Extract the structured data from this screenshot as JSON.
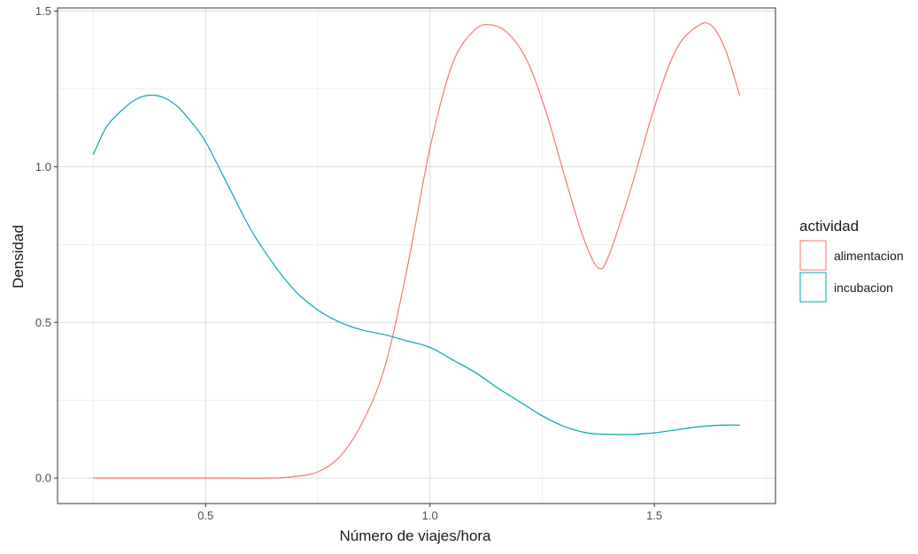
{
  "chart_data": {
    "type": "line",
    "xlabel": "Número de viajes/hora",
    "ylabel": "Densidad",
    "xlim": [
      0.17,
      1.77
    ],
    "ylim": [
      -0.082,
      1.51
    ],
    "x_ticks": [
      0.5,
      1.0,
      1.5
    ],
    "x_tick_labels": [
      "0.5",
      "1.0",
      "1.5"
    ],
    "y_ticks": [
      0.0,
      0.5,
      1.0,
      1.5
    ],
    "y_tick_labels": [
      "0.0",
      "0.5",
      "1.0",
      "1.5"
    ],
    "grid": true,
    "legend": {
      "title": "actividad",
      "position": "right"
    },
    "series": [
      {
        "name": "alimentacion",
        "color": "#f8766d",
        "x": [
          0.25,
          0.4,
          0.55,
          0.65,
          0.7,
          0.75,
          0.8,
          0.85,
          0.9,
          0.95,
          1.0,
          1.05,
          1.1,
          1.14,
          1.18,
          1.22,
          1.26,
          1.3,
          1.34,
          1.375,
          1.4,
          1.45,
          1.5,
          1.55,
          1.6,
          1.63,
          1.66,
          1.69
        ],
        "y": [
          0.0,
          0.0,
          0.0,
          0.0,
          0.005,
          0.02,
          0.07,
          0.18,
          0.36,
          0.68,
          1.06,
          1.33,
          1.44,
          1.455,
          1.42,
          1.33,
          1.17,
          0.97,
          0.78,
          0.675,
          0.72,
          0.94,
          1.19,
          1.38,
          1.455,
          1.45,
          1.37,
          1.23
        ]
      },
      {
        "name": "incubacion",
        "color": "#00a9b5",
        "x": [
          0.25,
          0.28,
          0.32,
          0.35,
          0.38,
          0.41,
          0.44,
          0.47,
          0.5,
          0.55,
          0.6,
          0.65,
          0.7,
          0.75,
          0.8,
          0.85,
          0.9,
          0.95,
          1.0,
          1.05,
          1.1,
          1.15,
          1.2,
          1.25,
          1.3,
          1.35,
          1.4,
          1.45,
          1.5,
          1.55,
          1.6,
          1.65,
          1.69
        ],
        "y": [
          1.04,
          1.13,
          1.19,
          1.22,
          1.23,
          1.22,
          1.19,
          1.14,
          1.08,
          0.94,
          0.8,
          0.69,
          0.6,
          0.54,
          0.5,
          0.475,
          0.46,
          0.44,
          0.42,
          0.38,
          0.34,
          0.29,
          0.245,
          0.2,
          0.165,
          0.145,
          0.14,
          0.14,
          0.145,
          0.155,
          0.165,
          0.17,
          0.17
        ]
      }
    ]
  }
}
